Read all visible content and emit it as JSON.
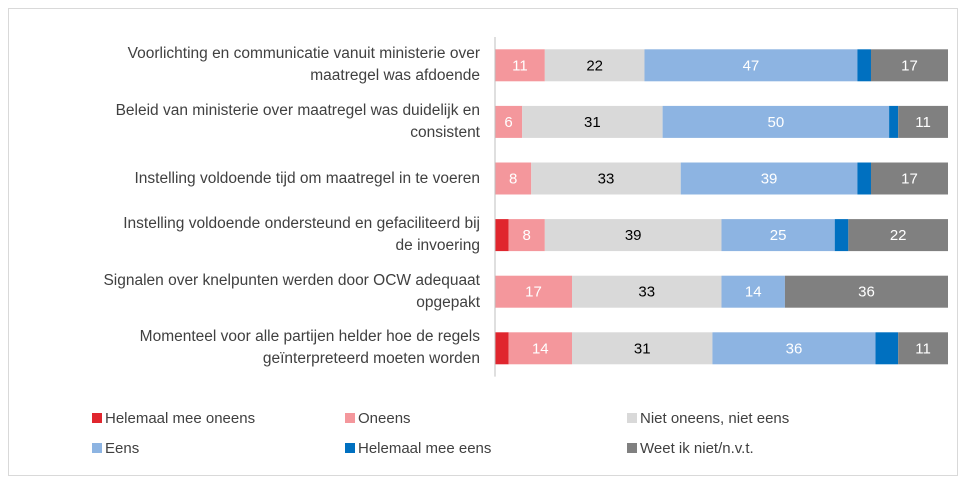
{
  "chart_data": {
    "type": "stacked_bar_100",
    "orientation": "horizontal",
    "categories": [
      "Voorlichting en communicatie vanuit ministerie over\nmaatregel was afdoende",
      "Beleid van ministerie over maatregel was duidelijk en\nconsistent",
      "Instelling voldoende tijd om maatregel in te voeren",
      "Instelling voldoende ondersteund en gefaciliteerd bij\nde invoering",
      "Signalen over knelpunten werden door OCW adequaat\nopgepakt",
      "Momenteel voor alle partijen helder hoe de regels\ngeïnterpreteerd moeten worden"
    ],
    "series": [
      {
        "name": "Helemaal mee oneens",
        "color": "#e0262e",
        "label_color": "#ffffff",
        "values": [
          0,
          0,
          0,
          3,
          0,
          3
        ]
      },
      {
        "name": "Oneens",
        "color": "#f4979c",
        "label_color": "#ffffff",
        "values": [
          11,
          6,
          8,
          8,
          17,
          14
        ]
      },
      {
        "name": "Niet oneens, niet eens",
        "color": "#d9d9d9",
        "label_color": "#000000",
        "values": [
          22,
          31,
          33,
          39,
          33,
          31
        ]
      },
      {
        "name": "Eens",
        "color": "#8db4e2",
        "label_color": "#ffffff",
        "values": [
          47,
          50,
          39,
          25,
          14,
          36
        ]
      },
      {
        "name": "Helemaal mee eens",
        "color": "#0070c0",
        "label_color": "#ffffff",
        "values": [
          3,
          2,
          3,
          3,
          0,
          5
        ]
      },
      {
        "name": "Weet ik niet/n.v.t.",
        "color": "#808080",
        "label_color": "#ffffff",
        "values": [
          17,
          11,
          17,
          22,
          36,
          11
        ]
      }
    ],
    "legend": "bottom"
  }
}
